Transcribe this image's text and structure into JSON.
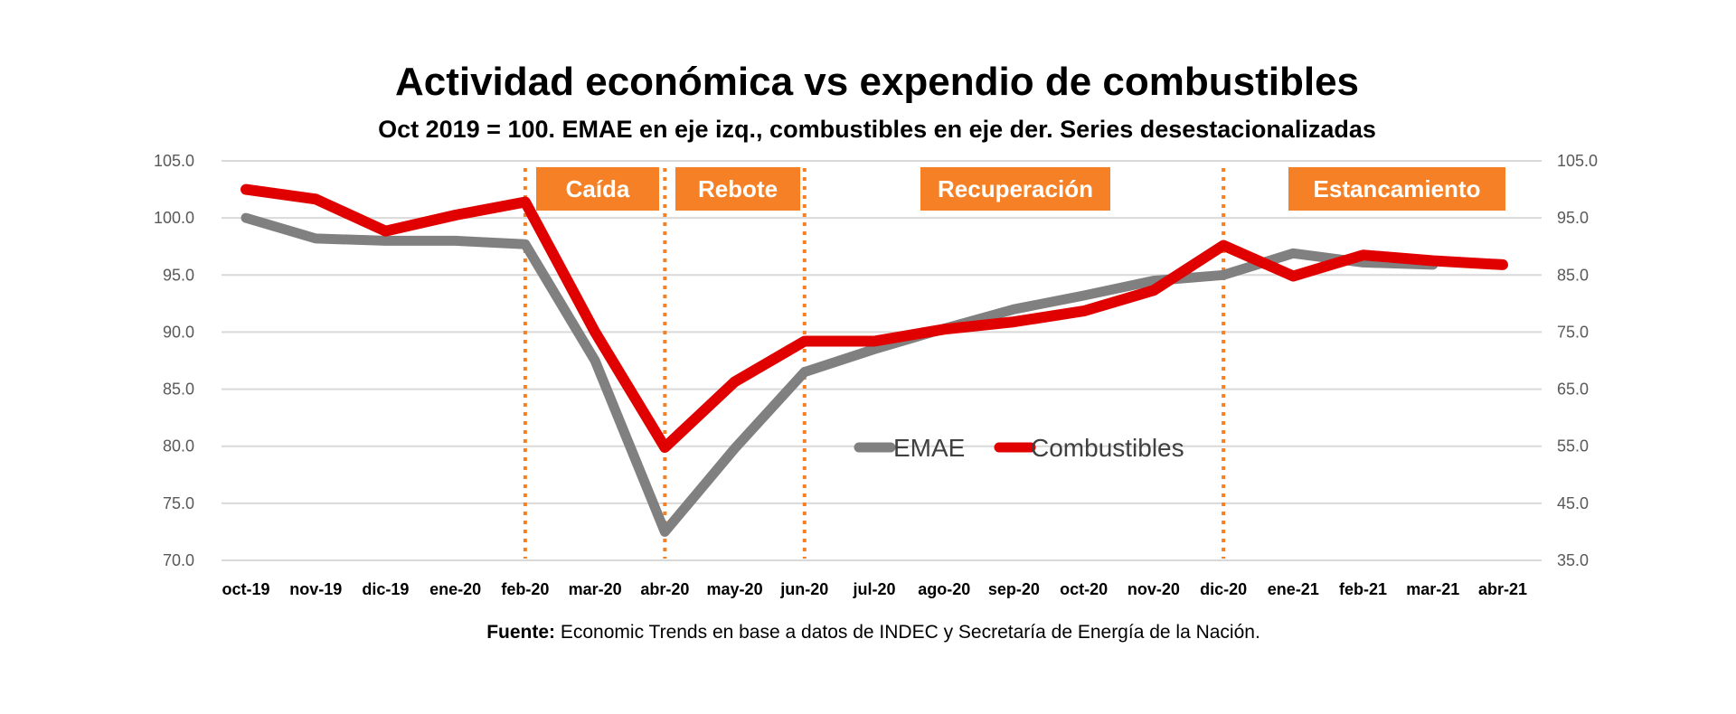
{
  "chart_data": {
    "type": "line",
    "title": "Actividad económica vs expendio de combustibles",
    "subtitle": "Oct 2019 = 100. EMAE en eje izq., combustibles en eje der. Series desestacionalizadas",
    "categories": [
      "oct-19",
      "nov-19",
      "dic-19",
      "ene-20",
      "feb-20",
      "mar-20",
      "abr-20",
      "may-20",
      "jun-20",
      "jul-20",
      "ago-20",
      "sep-20",
      "oct-20",
      "nov-20",
      "dic-20",
      "ene-21",
      "feb-21",
      "mar-21",
      "abr-21"
    ],
    "left_axis": {
      "ylim": [
        70,
        105
      ],
      "ticks": [
        "105.0",
        "100.0",
        "95.0",
        "90.0",
        "85.0",
        "80.0",
        "75.0",
        "70.0"
      ],
      "tick_values": [
        105,
        100,
        95,
        90,
        85,
        80,
        75,
        70
      ]
    },
    "right_axis": {
      "ylim": [
        35,
        105
      ],
      "ticks": [
        "105.0",
        "95.0",
        "85.0",
        "75.0",
        "65.0",
        "55.0",
        "45.0",
        "35.0"
      ],
      "tick_values": [
        105,
        95,
        85,
        75,
        65,
        55,
        45,
        35
      ]
    },
    "series": [
      {
        "name": "EMAE",
        "axis": "left",
        "color": "#808080",
        "values": [
          100.0,
          98.2,
          98.0,
          98.0,
          97.7,
          87.5,
          72.5,
          79.8,
          86.5,
          88.5,
          90.3,
          92.0,
          93.2,
          94.5,
          95.0,
          96.9,
          96.1,
          95.9,
          null
        ]
      },
      {
        "name": "Combustibles",
        "axis": "right",
        "color": "#e00000",
        "values": [
          100.0,
          98.3,
          92.7,
          95.5,
          97.8,
          75.0,
          54.8,
          66.3,
          73.4,
          73.4,
          75.5,
          76.8,
          78.7,
          82.3,
          90.2,
          84.8,
          88.5,
          87.5,
          86.8
        ]
      }
    ],
    "phase_dividers": [
      "feb-20",
      "abr-20",
      "jun-20",
      "dic-20"
    ],
    "phases": [
      {
        "label": "Caída",
        "from": "feb-20",
        "to": "abr-20"
      },
      {
        "label": "Rebote",
        "from": "abr-20",
        "to": "jun-20"
      },
      {
        "label": "Recuperación",
        "from": "jun-20",
        "to": "dic-20"
      },
      {
        "label": "Estancamiento",
        "from": "dic-20",
        "to": "abr-21"
      }
    ],
    "phase_color": "#f58025",
    "grid": true,
    "legend": {
      "placement": "center",
      "items": [
        "EMAE",
        "Combustibles"
      ]
    },
    "xlabel": "",
    "ylabel": ""
  },
  "source": {
    "label": "Fuente:",
    "text": " Economic Trends en base a datos de INDEC y Secretaría de Energía de la Nación."
  }
}
